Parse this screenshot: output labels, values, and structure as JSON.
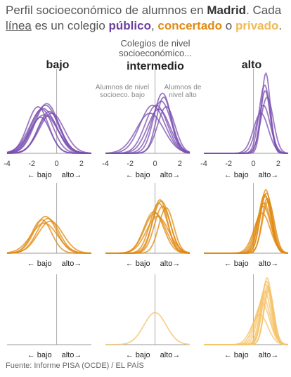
{
  "title": {
    "t1": "Perfil socioeconómico de alumnos en ",
    "city": "Madrid",
    "t2": ". Cada ",
    "linea": "línea",
    "t3": " es un colegio ",
    "publico": "público",
    "sep1": ", ",
    "concertado": "concertado",
    "sep2": " o ",
    "privado": "privado",
    "end": "."
  },
  "header": {
    "note_line1": "Colegios de nivel",
    "note_line2": "socioeconómico...",
    "columns": [
      "bajo",
      "intermedio",
      "alto"
    ]
  },
  "annotations": {
    "low_line1": "Alumnos de nivel",
    "low_line2": "socioeco. bajo",
    "high_line1": "Alumnos de",
    "high_line2": "nivel alto"
  },
  "axis": {
    "ticks": [
      -4,
      -2,
      0,
      2
    ],
    "tick_labels": [
      "-4",
      "-2",
      "0",
      "2"
    ],
    "low_label": "← bajo",
    "high_label": "alto→"
  },
  "source": "Fuente: Informe PISA (OCDE) / EL PAÍS",
  "colors": {
    "publico": "#7a4fb0",
    "concertado": "#e08a12",
    "privado": "#f5c36a",
    "axis": "#999999"
  },
  "chart_data": {
    "type": "line",
    "subtype": "density-small-multiples",
    "xlim": [
      -4,
      2.8
    ],
    "rows": [
      "público",
      "concertado",
      "privado"
    ],
    "columns": [
      "bajo",
      "intermedio",
      "alto"
    ],
    "curves": {
      "publico": {
        "bajo": [
          [
            -1.2,
            0.9,
            0.55
          ],
          [
            -0.9,
            1.0,
            0.6
          ],
          [
            -1.5,
            0.85,
            0.58
          ],
          [
            -0.6,
            0.9,
            0.52
          ],
          [
            -1.0,
            1.1,
            0.48
          ],
          [
            -0.4,
            1.0,
            0.5
          ],
          [
            -1.3,
            0.8,
            0.45
          ],
          [
            -0.8,
            0.95,
            0.62
          ],
          [
            -1.1,
            1.05,
            0.56
          ],
          [
            -0.7,
            0.85,
            0.47
          ]
        ],
        "intermedio": [
          [
            0.3,
            0.9,
            0.55
          ],
          [
            0.7,
            0.6,
            0.7
          ],
          [
            -0.2,
            1.0,
            0.6
          ],
          [
            0.5,
            0.8,
            0.65
          ],
          [
            0.9,
            0.7,
            0.58
          ],
          [
            0.1,
            0.9,
            0.6
          ],
          [
            0.6,
            0.7,
            0.75
          ],
          [
            -0.4,
            1.1,
            0.5
          ]
        ],
        "alto": [
          [
            1.0,
            0.35,
            1.0
          ],
          [
            0.9,
            0.45,
            0.85
          ],
          [
            0.8,
            0.55,
            0.6
          ],
          [
            1.1,
            0.5,
            0.7
          ],
          [
            0.6,
            0.6,
            0.5
          ],
          [
            0.95,
            0.4,
            0.78
          ]
        ]
      },
      "concertado": {
        "bajo": [
          [
            -0.9,
            0.9,
            0.55
          ],
          [
            -1.2,
            0.8,
            0.5
          ],
          [
            -0.5,
            1.0,
            0.48
          ],
          [
            -1.0,
            1.05,
            0.45
          ],
          [
            -0.7,
            0.9,
            0.52
          ]
        ],
        "intermedio": [
          [
            0.3,
            0.7,
            0.75
          ],
          [
            0.6,
            0.65,
            0.7
          ],
          [
            -0.1,
            0.8,
            0.62
          ],
          [
            0.5,
            0.7,
            0.78
          ],
          [
            0.2,
            0.9,
            0.55
          ],
          [
            0.9,
            0.6,
            0.68
          ],
          [
            0.0,
            0.85,
            0.6
          ],
          [
            0.4,
            0.6,
            0.8
          ]
        ],
        "alto": [
          [
            1.0,
            0.45,
            0.95
          ],
          [
            0.9,
            0.5,
            0.88
          ],
          [
            1.1,
            0.42,
            0.82
          ],
          [
            0.85,
            0.55,
            0.75
          ],
          [
            1.05,
            0.5,
            0.9
          ],
          [
            0.8,
            0.6,
            0.7
          ],
          [
            1.2,
            0.48,
            0.78
          ],
          [
            0.95,
            0.52,
            0.85
          ],
          [
            0.7,
            0.65,
            0.6
          ]
        ]
      },
      "privado": {
        "bajo": [],
        "intermedio": [
          [
            0.0,
            0.9,
            0.48
          ]
        ],
        "alto": [
          [
            1.1,
            0.4,
            1.0
          ],
          [
            1.0,
            0.45,
            0.9
          ],
          [
            1.2,
            0.38,
            0.85
          ],
          [
            0.9,
            0.5,
            0.8
          ],
          [
            1.05,
            0.42,
            0.95
          ],
          [
            1.15,
            0.45,
            0.88
          ],
          [
            0.8,
            0.55,
            0.7
          ],
          [
            1.25,
            0.4,
            0.82
          ],
          [
            0.7,
            0.6,
            0.62
          ],
          [
            0.5,
            0.65,
            0.45
          ]
        ]
      }
    }
  }
}
